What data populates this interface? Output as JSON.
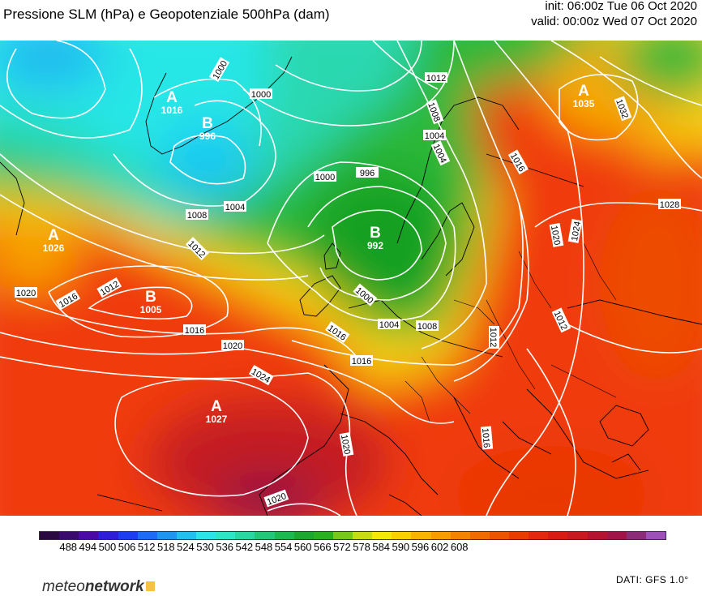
{
  "header": {
    "title": "Pressione SLM (hPa) e Geopotenziale 500hPa (dam)",
    "init": "init: 06:00z Tue 06 Oct 2020",
    "valid": "valid: 00:00z Wed 07 Oct 2020"
  },
  "centers": [
    {
      "letter": "A",
      "value": "1016"
    },
    {
      "letter": "B",
      "value": "996"
    },
    {
      "letter": "A",
      "value": "1035"
    },
    {
      "letter": "A",
      "value": "1026"
    },
    {
      "letter": "B",
      "value": "992"
    },
    {
      "letter": "B",
      "value": "1005"
    },
    {
      "letter": "A",
      "value": "1027"
    }
  ],
  "isobar_labels": [
    "1000",
    "1000",
    "1012",
    "1008",
    "1004",
    "1032",
    "1000",
    "996",
    "1004",
    "1016",
    "1008",
    "1004",
    "1028",
    "1020",
    "1024",
    "1012",
    "1012",
    "1016",
    "1020",
    "1000",
    "1004",
    "1008",
    "1016",
    "1012",
    "1012",
    "1016",
    "1020",
    "1016",
    "1024",
    "1020",
    "1016",
    "1020"
  ],
  "colorbar": {
    "colors": [
      "#2a0a40",
      "#3b0a6e",
      "#4b0aa6",
      "#2e1ed8",
      "#1c3ef0",
      "#1e6cf5",
      "#1e96f0",
      "#22c0ee",
      "#2ae4e8",
      "#2ce6c6",
      "#28d8a0",
      "#22c878",
      "#1cb850",
      "#1ca830",
      "#28b020",
      "#78c81c",
      "#c8dc14",
      "#f4e808",
      "#f8d000",
      "#f8b400",
      "#f89c00",
      "#f48400",
      "#f06c00",
      "#ec5400",
      "#e83c00",
      "#e42810",
      "#d81c14",
      "#c81820",
      "#b41430",
      "#a01448",
      "#8c2c78",
      "#9c50b8"
    ],
    "ticks": [
      "488",
      "494",
      "500",
      "506",
      "512",
      "518",
      "524",
      "530",
      "536",
      "542",
      "548",
      "554",
      "560",
      "566",
      "572",
      "578",
      "584",
      "590",
      "596",
      "602",
      "608"
    ]
  },
  "footer": {
    "logo_light": "meteo",
    "logo_bold": "network",
    "source": "DATI: GFS 1.0°"
  }
}
